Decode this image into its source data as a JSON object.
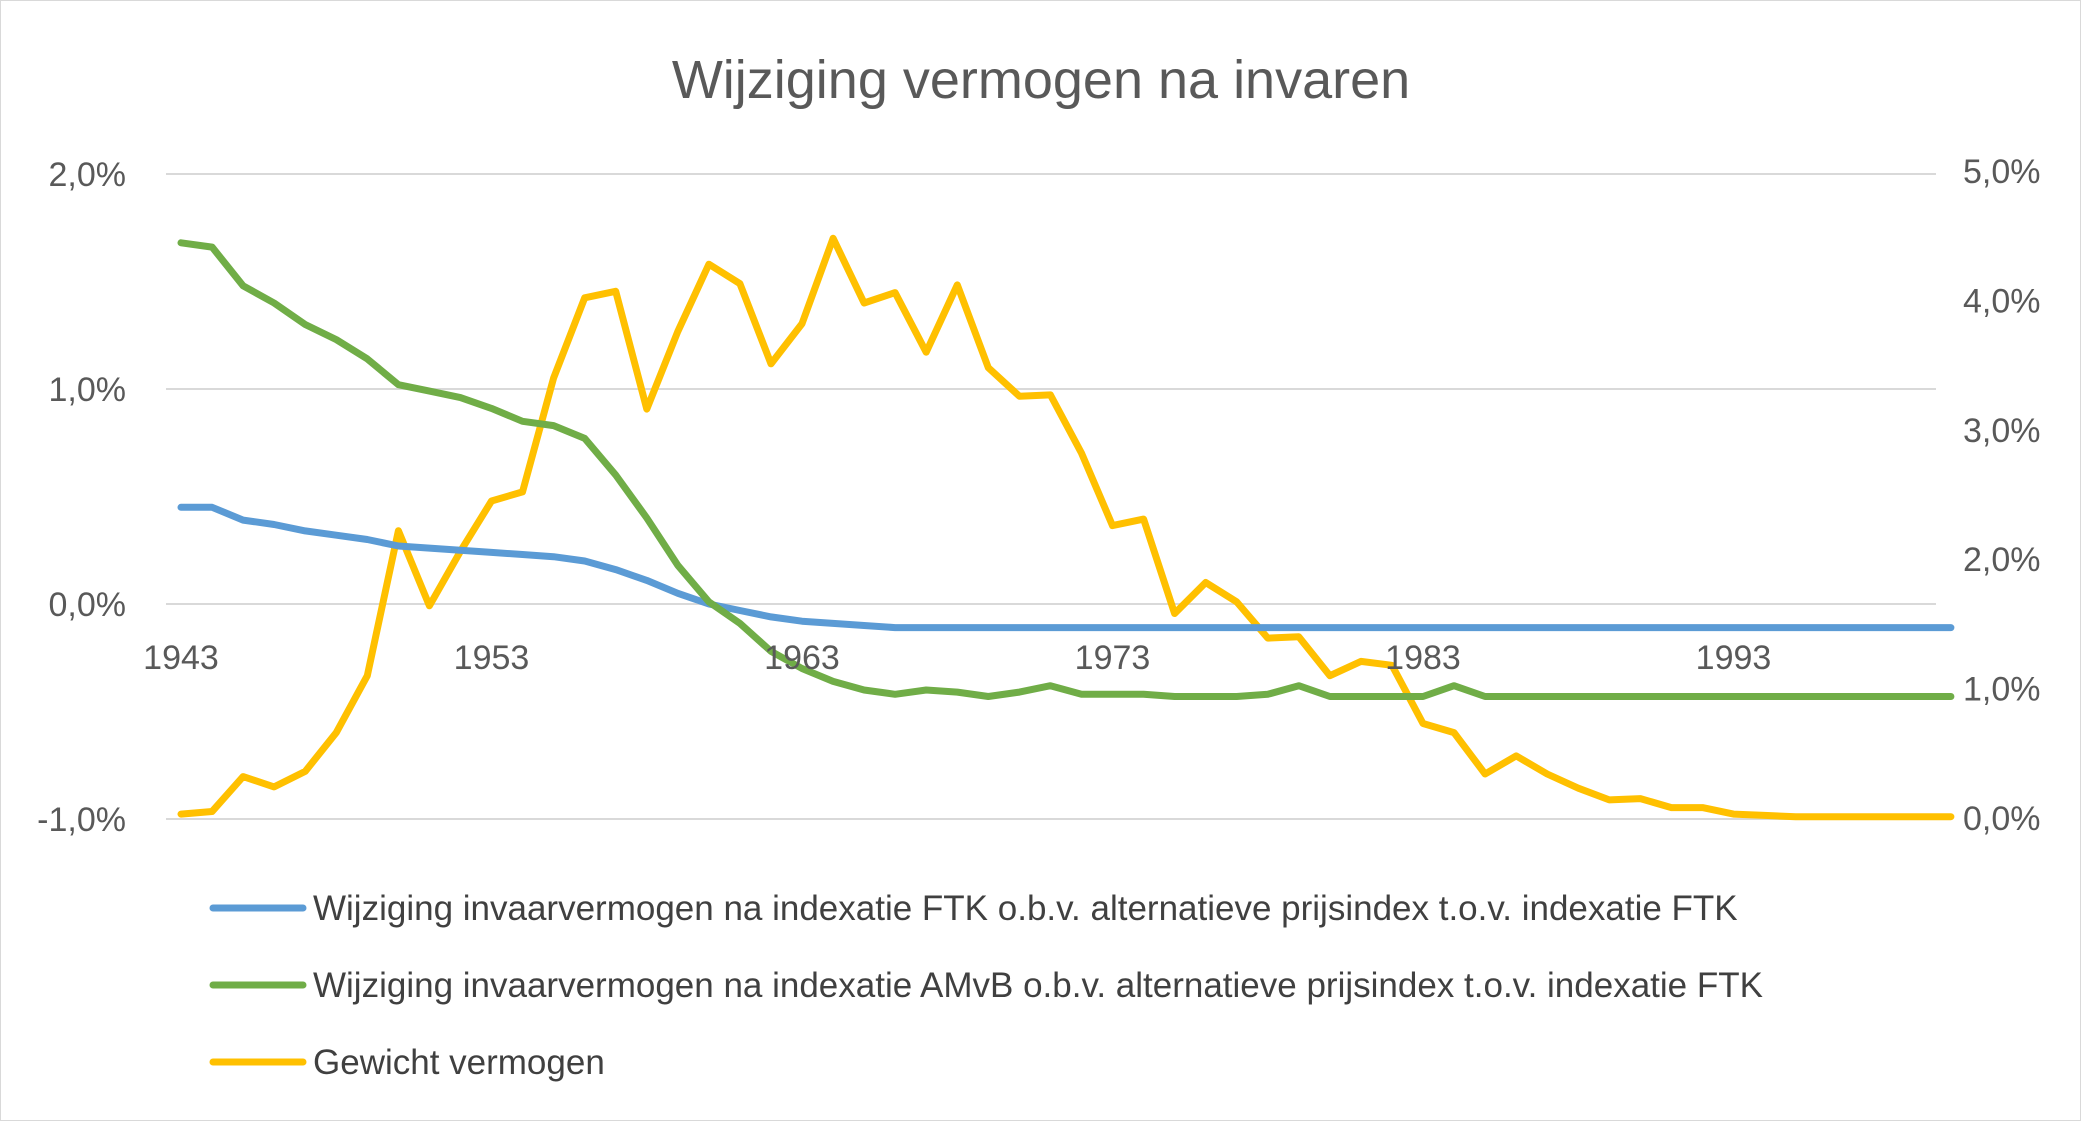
{
  "chart_data": {
    "type": "line",
    "title": "Wijziging vermogen na invaren",
    "x": {
      "start_year": 1943,
      "end_year": 2000,
      "tick_labels": [
        "1943",
        "1953",
        "1963",
        "1973",
        "1983",
        "1993"
      ]
    },
    "y_left": {
      "ylim": [
        -0.01,
        0.02
      ],
      "tick_labels": [
        "-1,0%",
        "0,0%",
        "1,0%",
        "2,0%"
      ]
    },
    "y_right": {
      "ylim": [
        0.0,
        0.05
      ],
      "tick_labels": [
        "0,0%",
        "1,0%",
        "2,0%",
        "3,0%",
        "4,0%",
        "5,0%"
      ]
    },
    "grid": true,
    "legend_position": "bottom",
    "series": [
      {
        "name": "Wijziging invaarvermogen na indexatie FTK o.b.v. alternatieve prijsindex t.o.v. indexatie FTK",
        "color": "#5b9bd5",
        "axis": "left",
        "values": [
          0.0045,
          0.0045,
          0.0039,
          0.0037,
          0.0034,
          0.0032,
          0.003,
          0.0027,
          0.0026,
          0.0025,
          0.0024,
          0.0023,
          0.0022,
          0.002,
          0.0016,
          0.0011,
          0.0005,
          0.0,
          -0.0003,
          -0.0006,
          -0.0008,
          -0.0009,
          -0.001,
          -0.0011,
          -0.0011,
          -0.0011,
          -0.0011,
          -0.0011,
          -0.0011,
          -0.0011,
          -0.0011,
          -0.0011,
          -0.0011,
          -0.0011,
          -0.0011,
          -0.0011,
          -0.0011,
          -0.0011,
          -0.0011,
          -0.0011,
          -0.0011,
          -0.0011,
          -0.0011,
          -0.0011,
          -0.0011,
          -0.0011,
          -0.0011,
          -0.0011,
          -0.0011,
          -0.0011,
          -0.0011,
          -0.0011,
          -0.0011,
          -0.0011,
          -0.0011,
          -0.0011,
          -0.0011,
          -0.0011
        ]
      },
      {
        "name": "Wijziging invaarvermogen na indexatie AMvB o.b.v. alternatieve prijsindex t.o.v. indexatie FTK",
        "color": "#70ad47",
        "axis": "left",
        "values": [
          0.0168,
          0.0166,
          0.0148,
          0.014,
          0.013,
          0.0123,
          0.0114,
          0.0102,
          0.0099,
          0.0096,
          0.0091,
          0.0085,
          0.0083,
          0.0077,
          0.006,
          0.004,
          0.0018,
          0.0001,
          -0.0009,
          -0.0022,
          -0.003,
          -0.0036,
          -0.004,
          -0.0042,
          -0.004,
          -0.0041,
          -0.0043,
          -0.0041,
          -0.0038,
          -0.0042,
          -0.0042,
          -0.0042,
          -0.0043,
          -0.0043,
          -0.0043,
          -0.0042,
          -0.0038,
          -0.0043,
          -0.0043,
          -0.0043,
          -0.0043,
          -0.0038,
          -0.0043,
          -0.0043,
          -0.0043,
          -0.0043,
          -0.0043,
          -0.0043,
          -0.0043,
          -0.0043,
          -0.0043,
          -0.0043,
          -0.0043,
          -0.0043,
          -0.0043,
          -0.0043,
          -0.0043,
          -0.0043
        ]
      },
      {
        "name": "Gewicht vermogen",
        "color": "#ffc000",
        "axis": "right",
        "values": [
          0.0003,
          0.0005,
          0.0032,
          0.0024,
          0.0036,
          0.0066,
          0.011,
          0.0222,
          0.0164,
          0.0206,
          0.0245,
          0.0252,
          0.034,
          0.0402,
          0.0407,
          0.0316,
          0.0376,
          0.0428,
          0.0413,
          0.0351,
          0.0382,
          0.0448,
          0.0398,
          0.0406,
          0.036,
          0.0412,
          0.0348,
          0.0326,
          0.0327,
          0.0282,
          0.0226,
          0.0231,
          0.0158,
          0.0182,
          0.0167,
          0.0139,
          0.014,
          0.011,
          0.0121,
          0.0118,
          0.0073,
          0.0066,
          0.0034,
          0.0048,
          0.0034,
          0.0023,
          0.0014,
          0.0015,
          0.0008,
          0.0008,
          0.0003,
          0.0002,
          0.0001,
          0.0001,
          0.0001,
          0.0001,
          0.0001,
          0.0001
        ]
      }
    ]
  }
}
